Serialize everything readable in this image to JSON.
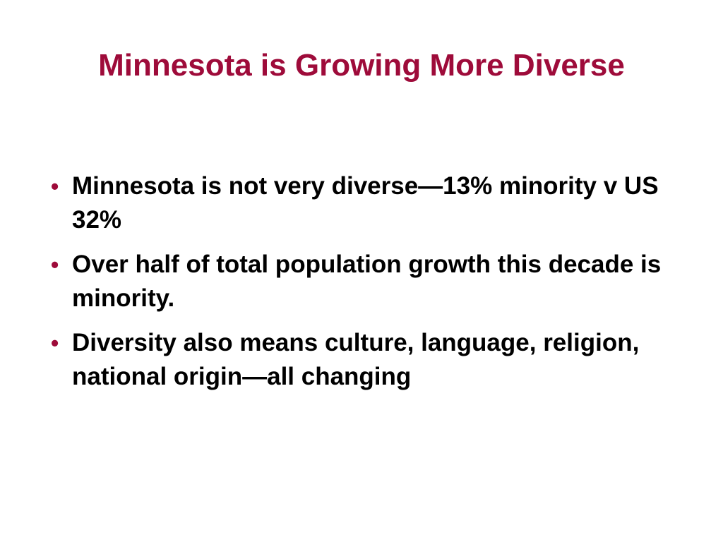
{
  "title": "Minnesota is Growing More Diverse",
  "bullets": [
    "Minnesota is not very diverse—13% minority v US 32%",
    "Over half of total population growth this decade is minority.",
    "Diversity also means culture, language, religion, national origin—all changing"
  ]
}
